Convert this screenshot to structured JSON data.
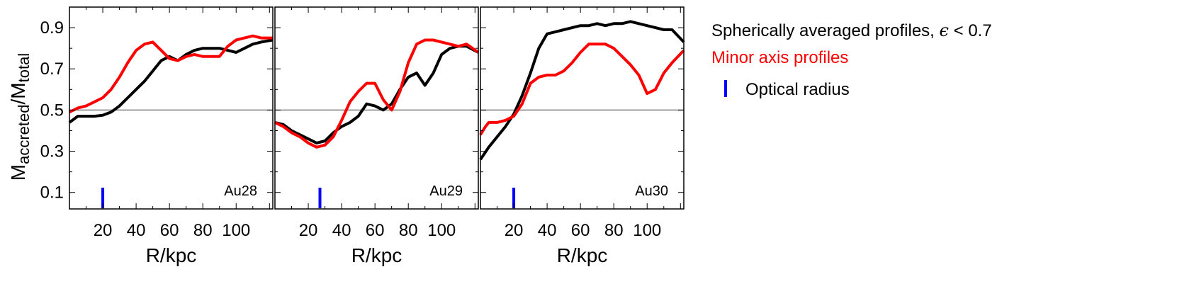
{
  "chart_data": {
    "type": "line",
    "shared": {
      "xlabel": "R/kpc",
      "ylabel_main": "M",
      "ylabel_sub1": "accreted",
      "ylabel_sep": "/M",
      "ylabel_sub2": "total",
      "xlim": [
        0,
        122
      ],
      "ylim": [
        0.02,
        1.0
      ],
      "xticks": [
        20,
        40,
        60,
        80,
        100
      ],
      "yticks": [
        0.1,
        0.3,
        0.5,
        0.7,
        0.9
      ],
      "ytick_labels": [
        "0.1",
        "0.3",
        "0.5",
        "0.7",
        "0.9"
      ],
      "reference_line_y": 0.5
    },
    "colors": {
      "spherical": "#000000",
      "minor_axis": "#ff0000",
      "optical": "#0000ff",
      "reference": "#808080"
    },
    "legend": [
      {
        "key": "spherical",
        "prefix": "Spherically averaged profiles, ",
        "symbol": "ϵ",
        "suffix": " < 0.7"
      },
      {
        "key": "minor_axis",
        "label": "Minor axis profiles"
      },
      {
        "key": "optical",
        "label": "Optical radius"
      }
    ],
    "panels": [
      {
        "label": "Au28",
        "optical_radius": 20,
        "series": [
          {
            "name": "Spherically averaged profiles",
            "key": "spherical",
            "x": [
              0,
              5,
              10,
              15,
              20,
              25,
              30,
              35,
              40,
              45,
              50,
              55,
              60,
              65,
              70,
              75,
              80,
              85,
              90,
              95,
              100,
              105,
              110,
              115,
              122
            ],
            "y": [
              0.44,
              0.47,
              0.47,
              0.47,
              0.475,
              0.49,
              0.52,
              0.56,
              0.6,
              0.64,
              0.69,
              0.74,
              0.76,
              0.74,
              0.77,
              0.79,
              0.8,
              0.8,
              0.8,
              0.79,
              0.78,
              0.8,
              0.82,
              0.83,
              0.84
            ]
          },
          {
            "name": "Minor axis profiles",
            "key": "minor_axis",
            "x": [
              0,
              5,
              10,
              15,
              20,
              25,
              30,
              35,
              40,
              45,
              50,
              55,
              60,
              65,
              70,
              75,
              80,
              85,
              90,
              95,
              100,
              105,
              110,
              115,
              122
            ],
            "y": [
              0.49,
              0.51,
              0.52,
              0.54,
              0.56,
              0.6,
              0.66,
              0.73,
              0.79,
              0.82,
              0.83,
              0.79,
              0.75,
              0.74,
              0.76,
              0.77,
              0.76,
              0.76,
              0.76,
              0.81,
              0.84,
              0.85,
              0.86,
              0.85,
              0.85
            ]
          }
        ]
      },
      {
        "label": "Au29",
        "optical_radius": 27,
        "series": [
          {
            "name": "Spherically averaged profiles",
            "key": "spherical",
            "x": [
              0,
              5,
              10,
              15,
              20,
              25,
              30,
              35,
              40,
              45,
              50,
              55,
              60,
              65,
              70,
              75,
              80,
              85,
              90,
              95,
              100,
              105,
              110,
              115,
              122
            ],
            "y": [
              0.44,
              0.43,
              0.4,
              0.38,
              0.36,
              0.34,
              0.35,
              0.39,
              0.42,
              0.44,
              0.47,
              0.53,
              0.52,
              0.5,
              0.53,
              0.6,
              0.66,
              0.68,
              0.62,
              0.68,
              0.77,
              0.8,
              0.81,
              0.81,
              0.78
            ]
          },
          {
            "name": "Minor axis profiles",
            "key": "minor_axis",
            "x": [
              0,
              5,
              10,
              15,
              20,
              25,
              30,
              35,
              40,
              45,
              50,
              55,
              60,
              65,
              70,
              75,
              80,
              85,
              90,
              95,
              100,
              105,
              110,
              115,
              122
            ],
            "y": [
              0.44,
              0.42,
              0.39,
              0.37,
              0.34,
              0.32,
              0.33,
              0.37,
              0.45,
              0.54,
              0.59,
              0.63,
              0.63,
              0.55,
              0.5,
              0.59,
              0.73,
              0.82,
              0.84,
              0.84,
              0.83,
              0.82,
              0.81,
              0.82,
              0.78
            ]
          }
        ]
      },
      {
        "label": "Au30",
        "optical_radius": 20,
        "series": [
          {
            "name": "Spherically averaged profiles",
            "key": "spherical",
            "x": [
              0,
              5,
              10,
              15,
              20,
              25,
              30,
              35,
              40,
              45,
              50,
              55,
              60,
              65,
              70,
              75,
              80,
              85,
              90,
              95,
              100,
              105,
              110,
              115,
              122
            ],
            "y": [
              0.26,
              0.32,
              0.37,
              0.42,
              0.48,
              0.57,
              0.68,
              0.8,
              0.87,
              0.88,
              0.89,
              0.9,
              0.91,
              0.91,
              0.92,
              0.91,
              0.92,
              0.92,
              0.93,
              0.92,
              0.91,
              0.9,
              0.89,
              0.89,
              0.83
            ]
          },
          {
            "name": "Minor axis profiles",
            "key": "minor_axis",
            "x": [
              0,
              3,
              5,
              10,
              15,
              20,
              25,
              30,
              35,
              40,
              45,
              50,
              55,
              60,
              65,
              70,
              75,
              80,
              85,
              90,
              95,
              100,
              105,
              110,
              115,
              122
            ],
            "y": [
              0.38,
              0.42,
              0.44,
              0.44,
              0.45,
              0.47,
              0.53,
              0.63,
              0.66,
              0.67,
              0.67,
              0.69,
              0.73,
              0.78,
              0.82,
              0.82,
              0.82,
              0.8,
              0.76,
              0.72,
              0.67,
              0.58,
              0.6,
              0.68,
              0.73,
              0.79
            ]
          }
        ]
      }
    ]
  }
}
